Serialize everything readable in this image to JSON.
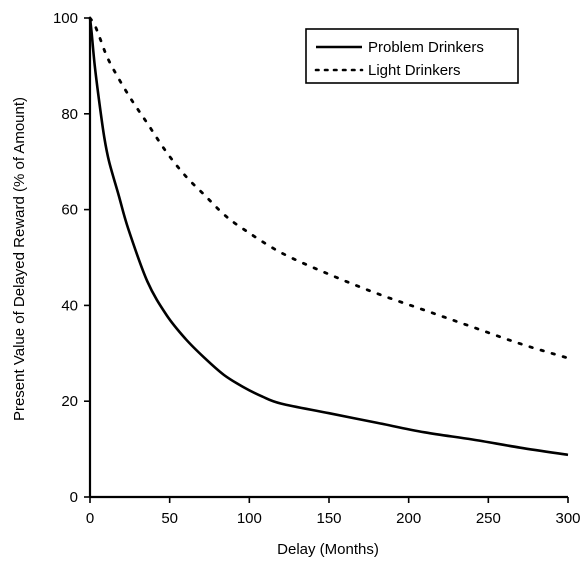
{
  "chart_data": {
    "type": "line",
    "title": "",
    "xlabel": "Delay (Months)",
    "ylabel": "Present Value of Delayed Reward (% of Amount)",
    "xlim": [
      0,
      300
    ],
    "ylim": [
      0,
      100
    ],
    "x_ticks": [
      0,
      50,
      100,
      150,
      200,
      250,
      300
    ],
    "y_ticks": [
      0,
      20,
      40,
      60,
      80,
      100
    ],
    "grid": false,
    "legend_position": "top-right",
    "series": [
      {
        "name": "Problem Drinkers",
        "style": "solid",
        "color": "#000000",
        "x": [
          0,
          1,
          3,
          6,
          9,
          12,
          18,
          24,
          36,
          48,
          60,
          72,
          84,
          96,
          108,
          120,
          150,
          180,
          210,
          240,
          270,
          300
        ],
        "y": [
          100,
          97,
          90,
          82,
          75,
          70,
          63,
          56,
          45,
          38,
          33,
          29,
          25.5,
          23,
          21,
          19.5,
          17.5,
          15.5,
          13.5,
          12,
          10.3,
          8.8
        ]
      },
      {
        "name": "Light Drinkers",
        "style": "dotted",
        "color": "#000000",
        "x": [
          0,
          3,
          6,
          12,
          24,
          36,
          48,
          60,
          72,
          84,
          96,
          120,
          150,
          180,
          210,
          240,
          270,
          300
        ],
        "y": [
          100,
          98.5,
          96,
          91,
          84,
          78,
          72,
          67,
          63,
          59,
          56,
          51,
          46.5,
          42.5,
          39,
          35.5,
          32,
          29
        ]
      }
    ]
  }
}
